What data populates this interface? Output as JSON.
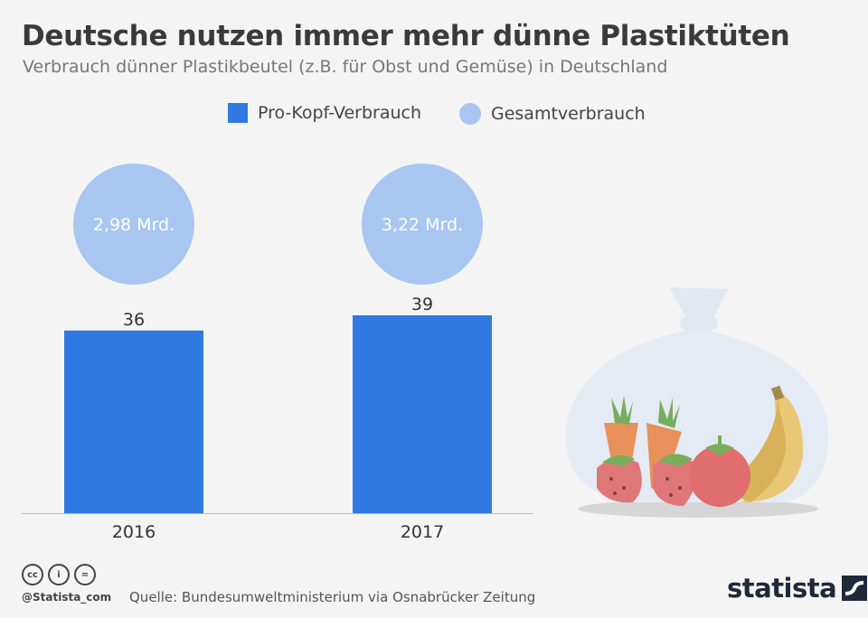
{
  "header": {
    "title": "Deutsche nutzen immer mehr dünne Plastiktüten",
    "subtitle": "Verbrauch dünner Plastikbeutel (z.B. für Obst und Gemüse) in Deutschland"
  },
  "chart_data": {
    "type": "bar",
    "title": "Deutsche nutzen immer mehr dünne Plastiktüten",
    "subtitle": "Verbrauch dünner Plastikbeutel (z.B. für Obst und Gemüse) in Deutschland",
    "categories": [
      "2016",
      "2017"
    ],
    "series": [
      {
        "name": "Pro-Kopf-Verbrauch",
        "values": [
          36,
          39
        ],
        "color": "#2f79e0"
      },
      {
        "name": "Gesamtverbrauch",
        "values": [
          2.98,
          3.22
        ],
        "labels": [
          "2,98 Mrd.",
          "3,22 Mrd."
        ],
        "color": "#a9c6f0"
      }
    ],
    "ylim": [
      0,
      39
    ],
    "xlabel": "",
    "ylabel": "",
    "grid": false,
    "legend": "top-center"
  },
  "legend": {
    "items": [
      {
        "label": "Pro-Kopf-Verbrauch",
        "color": "#2f79e0"
      },
      {
        "label": "Gesamtverbrauch",
        "color": "#a9c6f0"
      }
    ]
  },
  "footer": {
    "handle": "@Statista_com",
    "source": "Quelle: Bundesumweltministerium via Osnabrücker Zeitung",
    "brand": "statista",
    "cc_icons": [
      "cc",
      "i",
      "="
    ]
  },
  "colors": {
    "bar": "#2f79e0",
    "bubble": "#a9c6f0",
    "background": "#f4f4f4"
  }
}
